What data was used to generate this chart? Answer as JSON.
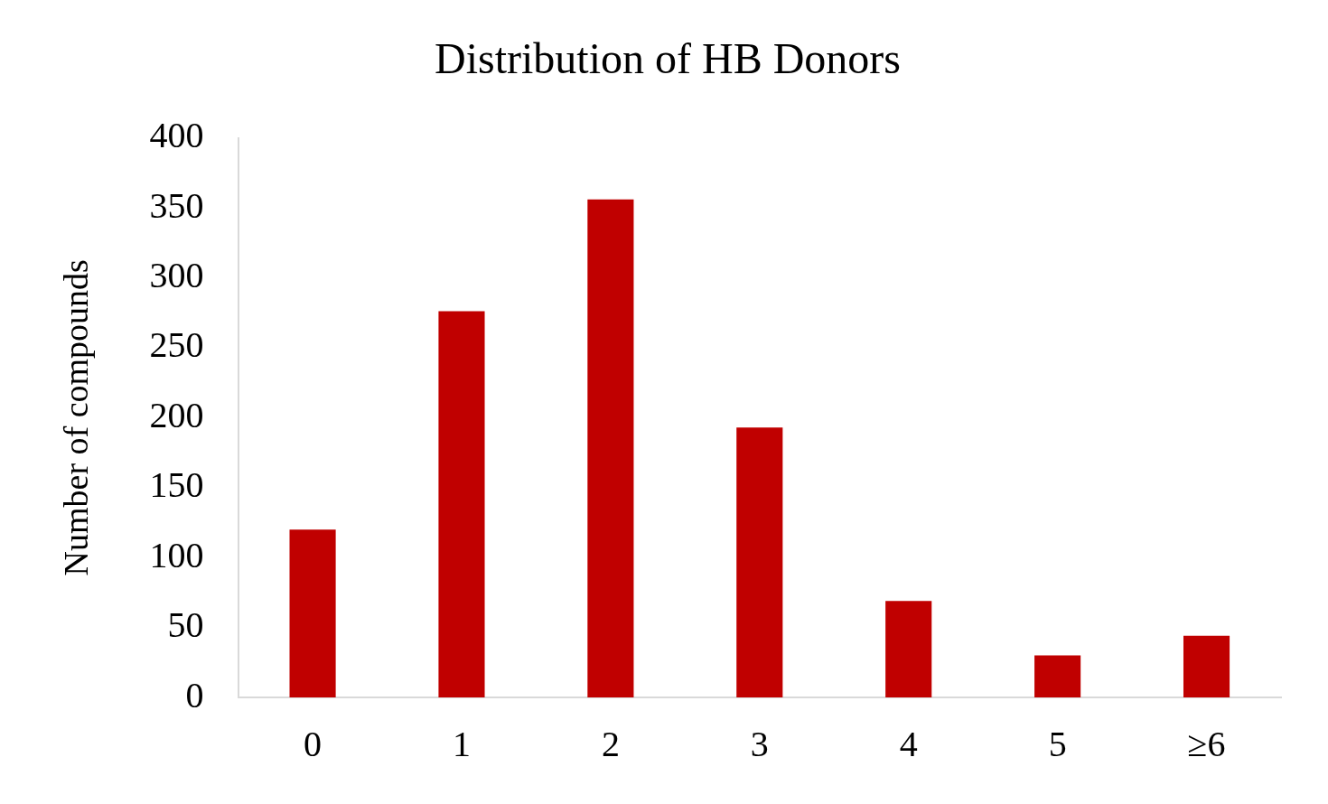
{
  "chart_data": {
    "type": "bar",
    "title": "Distribution of HB Donors",
    "ylabel": "Number of compounds",
    "categories": [
      "0",
      "1",
      "2",
      "3",
      "4",
      "5",
      "≥6"
    ],
    "values": [
      120,
      276,
      356,
      193,
      69,
      30,
      44
    ],
    "color": "#c00000",
    "ylim": [
      0,
      400
    ],
    "yticks": [
      0,
      50,
      100,
      150,
      200,
      250,
      300,
      350,
      400
    ],
    "grid": false,
    "legend": false
  }
}
